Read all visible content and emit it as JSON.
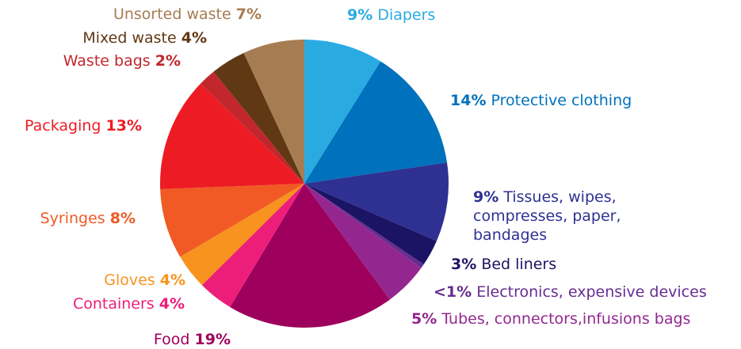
{
  "chart_data": {
    "type": "pie",
    "start_angle_deg": 0,
    "direction": "clockwise",
    "slices": [
      {
        "label": "Diapers",
        "value_label": "9%",
        "value": 9,
        "color": "#29abe2"
      },
      {
        "label": "Protective clothing",
        "value_label": "14%",
        "value": 14,
        "color": "#0071bc"
      },
      {
        "label": "Tissues, wipes, compresses, paper, bandages",
        "label_lines": [
          "Tissues, wipes,",
          "compresses, paper,",
          "bandages"
        ],
        "value_label": "9%",
        "value": 9,
        "color": "#2e3192"
      },
      {
        "label": "Bed liners",
        "value_label": "3%",
        "value": 3,
        "color": "#1b1464"
      },
      {
        "label": "Electronics, expensive devices",
        "value_label": "<1%",
        "value": 0.5,
        "color": "#662d91"
      },
      {
        "label": "Tubes, connectors,infusions bags",
        "value_label": "5%",
        "value": 5,
        "color": "#93278f"
      },
      {
        "label": "Food",
        "value_label": "19%",
        "value": 19,
        "color": "#9e005d"
      },
      {
        "label": "Containers",
        "value_label": "4%",
        "value": 4,
        "color": "#ed1e79"
      },
      {
        "label": "Gloves",
        "value_label": "4%",
        "value": 4,
        "color": "#f7931e"
      },
      {
        "label": "Syringes",
        "value_label": "8%",
        "value": 8,
        "color": "#f15a24"
      },
      {
        "label": "Packaging",
        "value_label": "13%",
        "value": 13,
        "color": "#ed1c24"
      },
      {
        "label": "Waste bags",
        "value_label": "2%",
        "value": 2,
        "color": "#c1272d"
      },
      {
        "label": "Mixed waste",
        "value_label": "4%",
        "value": 4,
        "color": "#603813"
      },
      {
        "label": "Unsorted waste",
        "value_label": "7%",
        "value": 7,
        "color": "#a67c52"
      }
    ]
  }
}
